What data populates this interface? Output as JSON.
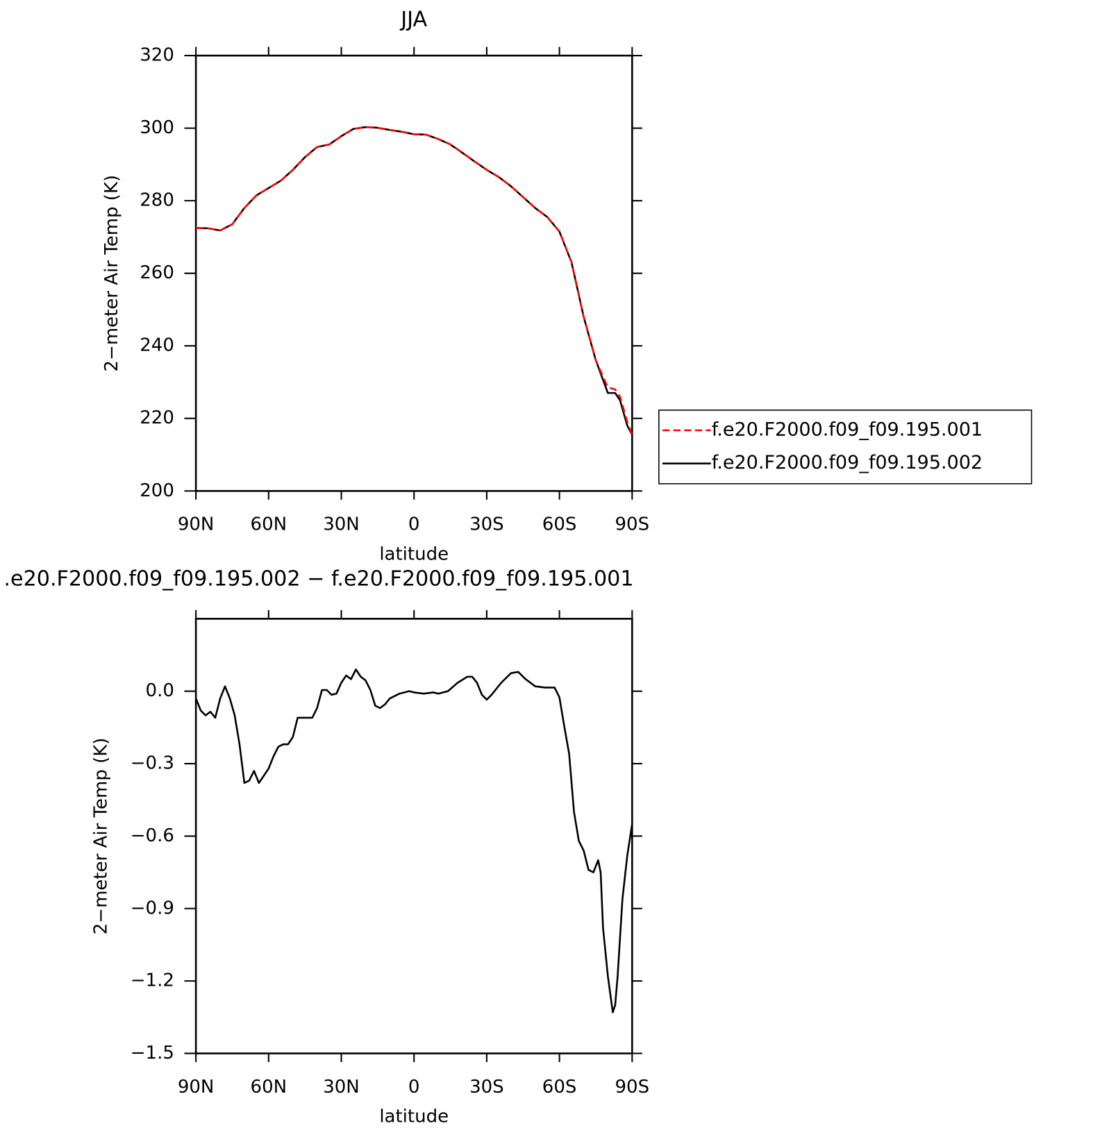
{
  "chart_data": [
    {
      "type": "line",
      "title": "JJA",
      "xlabel": "latitude",
      "ylabel": "2−meter Air Temp (K)",
      "xlim": [
        90,
        -90
      ],
      "xticks": [
        {
          "value": 90,
          "label": "90N"
        },
        {
          "value": 60,
          "label": "60N"
        },
        {
          "value": 30,
          "label": "30N"
        },
        0,
        {
          "value": -30,
          "label": "30S"
        },
        {
          "value": -60,
          "label": "60S"
        },
        {
          "value": -90,
          "label": "90S"
        }
      ],
      "ylim": [
        200,
        320
      ],
      "yticks": [
        200,
        220,
        240,
        260,
        280,
        300,
        320
      ],
      "legend": "right",
      "x": [
        90,
        85,
        80,
        75,
        70,
        65,
        60,
        55,
        50,
        45,
        40,
        35,
        30,
        25,
        20,
        15,
        10,
        5,
        0,
        -5,
        -10,
        -15,
        -20,
        -25,
        -30,
        -35,
        -40,
        -45,
        -50,
        -55,
        -60,
        -65,
        -70,
        -75,
        -80,
        -83,
        -85,
        -88,
        -90
      ],
      "series": [
        {
          "name": "f.e20.F2000.f09_f09.195.001",
          "color": "#ff0000",
          "dash": true,
          "values": [
            272.5,
            272.4,
            271.8,
            273.5,
            278,
            281.5,
            283.5,
            285.5,
            288.5,
            292,
            294.8,
            295.5,
            297.8,
            299.8,
            300.3,
            300.1,
            299.5,
            299,
            298.3,
            298.2,
            297,
            295.5,
            293.2,
            290.8,
            288.5,
            286.5,
            284,
            281,
            278,
            275.5,
            271.5,
            263,
            248,
            236,
            228.5,
            228,
            226,
            219,
            215.5
          ]
        },
        {
          "name": "f.e20.F2000.f09_f09.195.002",
          "color": "#000000",
          "dash": false,
          "values": [
            272.5,
            272.4,
            271.8,
            273.5,
            278,
            281.5,
            283.5,
            285.5,
            288.5,
            292,
            294.8,
            295.5,
            297.8,
            299.8,
            300.3,
            300.1,
            299.5,
            299,
            298.3,
            298.2,
            297,
            295.5,
            293.2,
            290.8,
            288.5,
            286.5,
            284,
            281,
            278,
            275.5,
            271.5,
            263,
            248,
            236,
            227,
            227,
            225,
            218,
            215.5
          ]
        }
      ]
    },
    {
      "type": "line",
      "title": ".e20.F2000.f09_f09.195.002 − f.e20.F2000.f09_f09.195.001",
      "xlabel": "latitude",
      "ylabel": "2−meter Air Temp (K)",
      "xlim": [
        90,
        -90
      ],
      "xticks": [
        {
          "value": 90,
          "label": "90N"
        },
        {
          "value": 60,
          "label": "60N"
        },
        {
          "value": 30,
          "label": "30N"
        },
        0,
        {
          "value": -30,
          "label": "30S"
        },
        {
          "value": -60,
          "label": "60S"
        },
        {
          "value": -90,
          "label": "90S"
        }
      ],
      "ylim": [
        -1.5,
        0.3
      ],
      "yticks": [
        {
          "value": -1.5,
          "label": "−1.5"
        },
        {
          "value": -1.2,
          "label": "−1.2"
        },
        {
          "value": -0.9,
          "label": "−0.9"
        },
        {
          "value": -0.6,
          "label": "−0.6"
        },
        {
          "value": -0.3,
          "label": "−0.3"
        },
        {
          "value": 0,
          "label": "0.0"
        }
      ],
      "x": [
        90,
        88,
        86,
        84,
        82,
        80,
        78,
        76,
        74,
        72,
        70,
        68,
        66,
        64,
        62,
        60,
        58,
        56,
        54,
        52,
        50,
        48,
        46,
        44,
        42,
        40,
        38,
        36,
        34,
        32,
        30,
        28,
        26,
        24,
        22,
        20,
        18,
        16,
        14,
        12,
        10,
        6,
        2,
        0,
        -4,
        -8,
        -10,
        -14,
        -18,
        -22,
        -24,
        -26,
        -28,
        -30,
        -32,
        -36,
        -40,
        -43,
        -46,
        -50,
        -54,
        -58,
        -60,
        -62,
        -64,
        -66,
        -68,
        -70,
        -72,
        -74,
        -76,
        -77,
        -78,
        -80,
        -82,
        -83,
        -84,
        -86,
        -88,
        -90
      ],
      "series": [
        {
          "color": "#000000",
          "values": [
            -0.03,
            -0.08,
            -0.1,
            -0.085,
            -0.11,
            -0.03,
            0.02,
            -0.03,
            -0.1,
            -0.22,
            -0.38,
            -0.37,
            -0.33,
            -0.38,
            -0.35,
            -0.32,
            -0.27,
            -0.23,
            -0.22,
            -0.22,
            -0.19,
            -0.11,
            -0.11,
            -0.11,
            -0.11,
            -0.07,
            0.005,
            0.005,
            -0.015,
            -0.01,
            0.035,
            0.065,
            0.05,
            0.09,
            0.06,
            0.045,
            0.005,
            -0.06,
            -0.07,
            -0.055,
            -0.03,
            -0.01,
            0,
            -0.005,
            -0.01,
            -0.005,
            -0.01,
            0,
            0.035,
            0.06,
            0.06,
            0.035,
            -0.015,
            -0.035,
            -0.015,
            0.035,
            0.075,
            0.08,
            0.05,
            0.02,
            0.015,
            0.015,
            -0.025,
            -0.145,
            -0.26,
            -0.5,
            -0.62,
            -0.66,
            -0.74,
            -0.75,
            -0.7,
            -0.75,
            -0.98,
            -1.18,
            -1.33,
            -1.3,
            -1.18,
            -0.86,
            -0.68,
            -0.55
          ]
        }
      ]
    }
  ]
}
